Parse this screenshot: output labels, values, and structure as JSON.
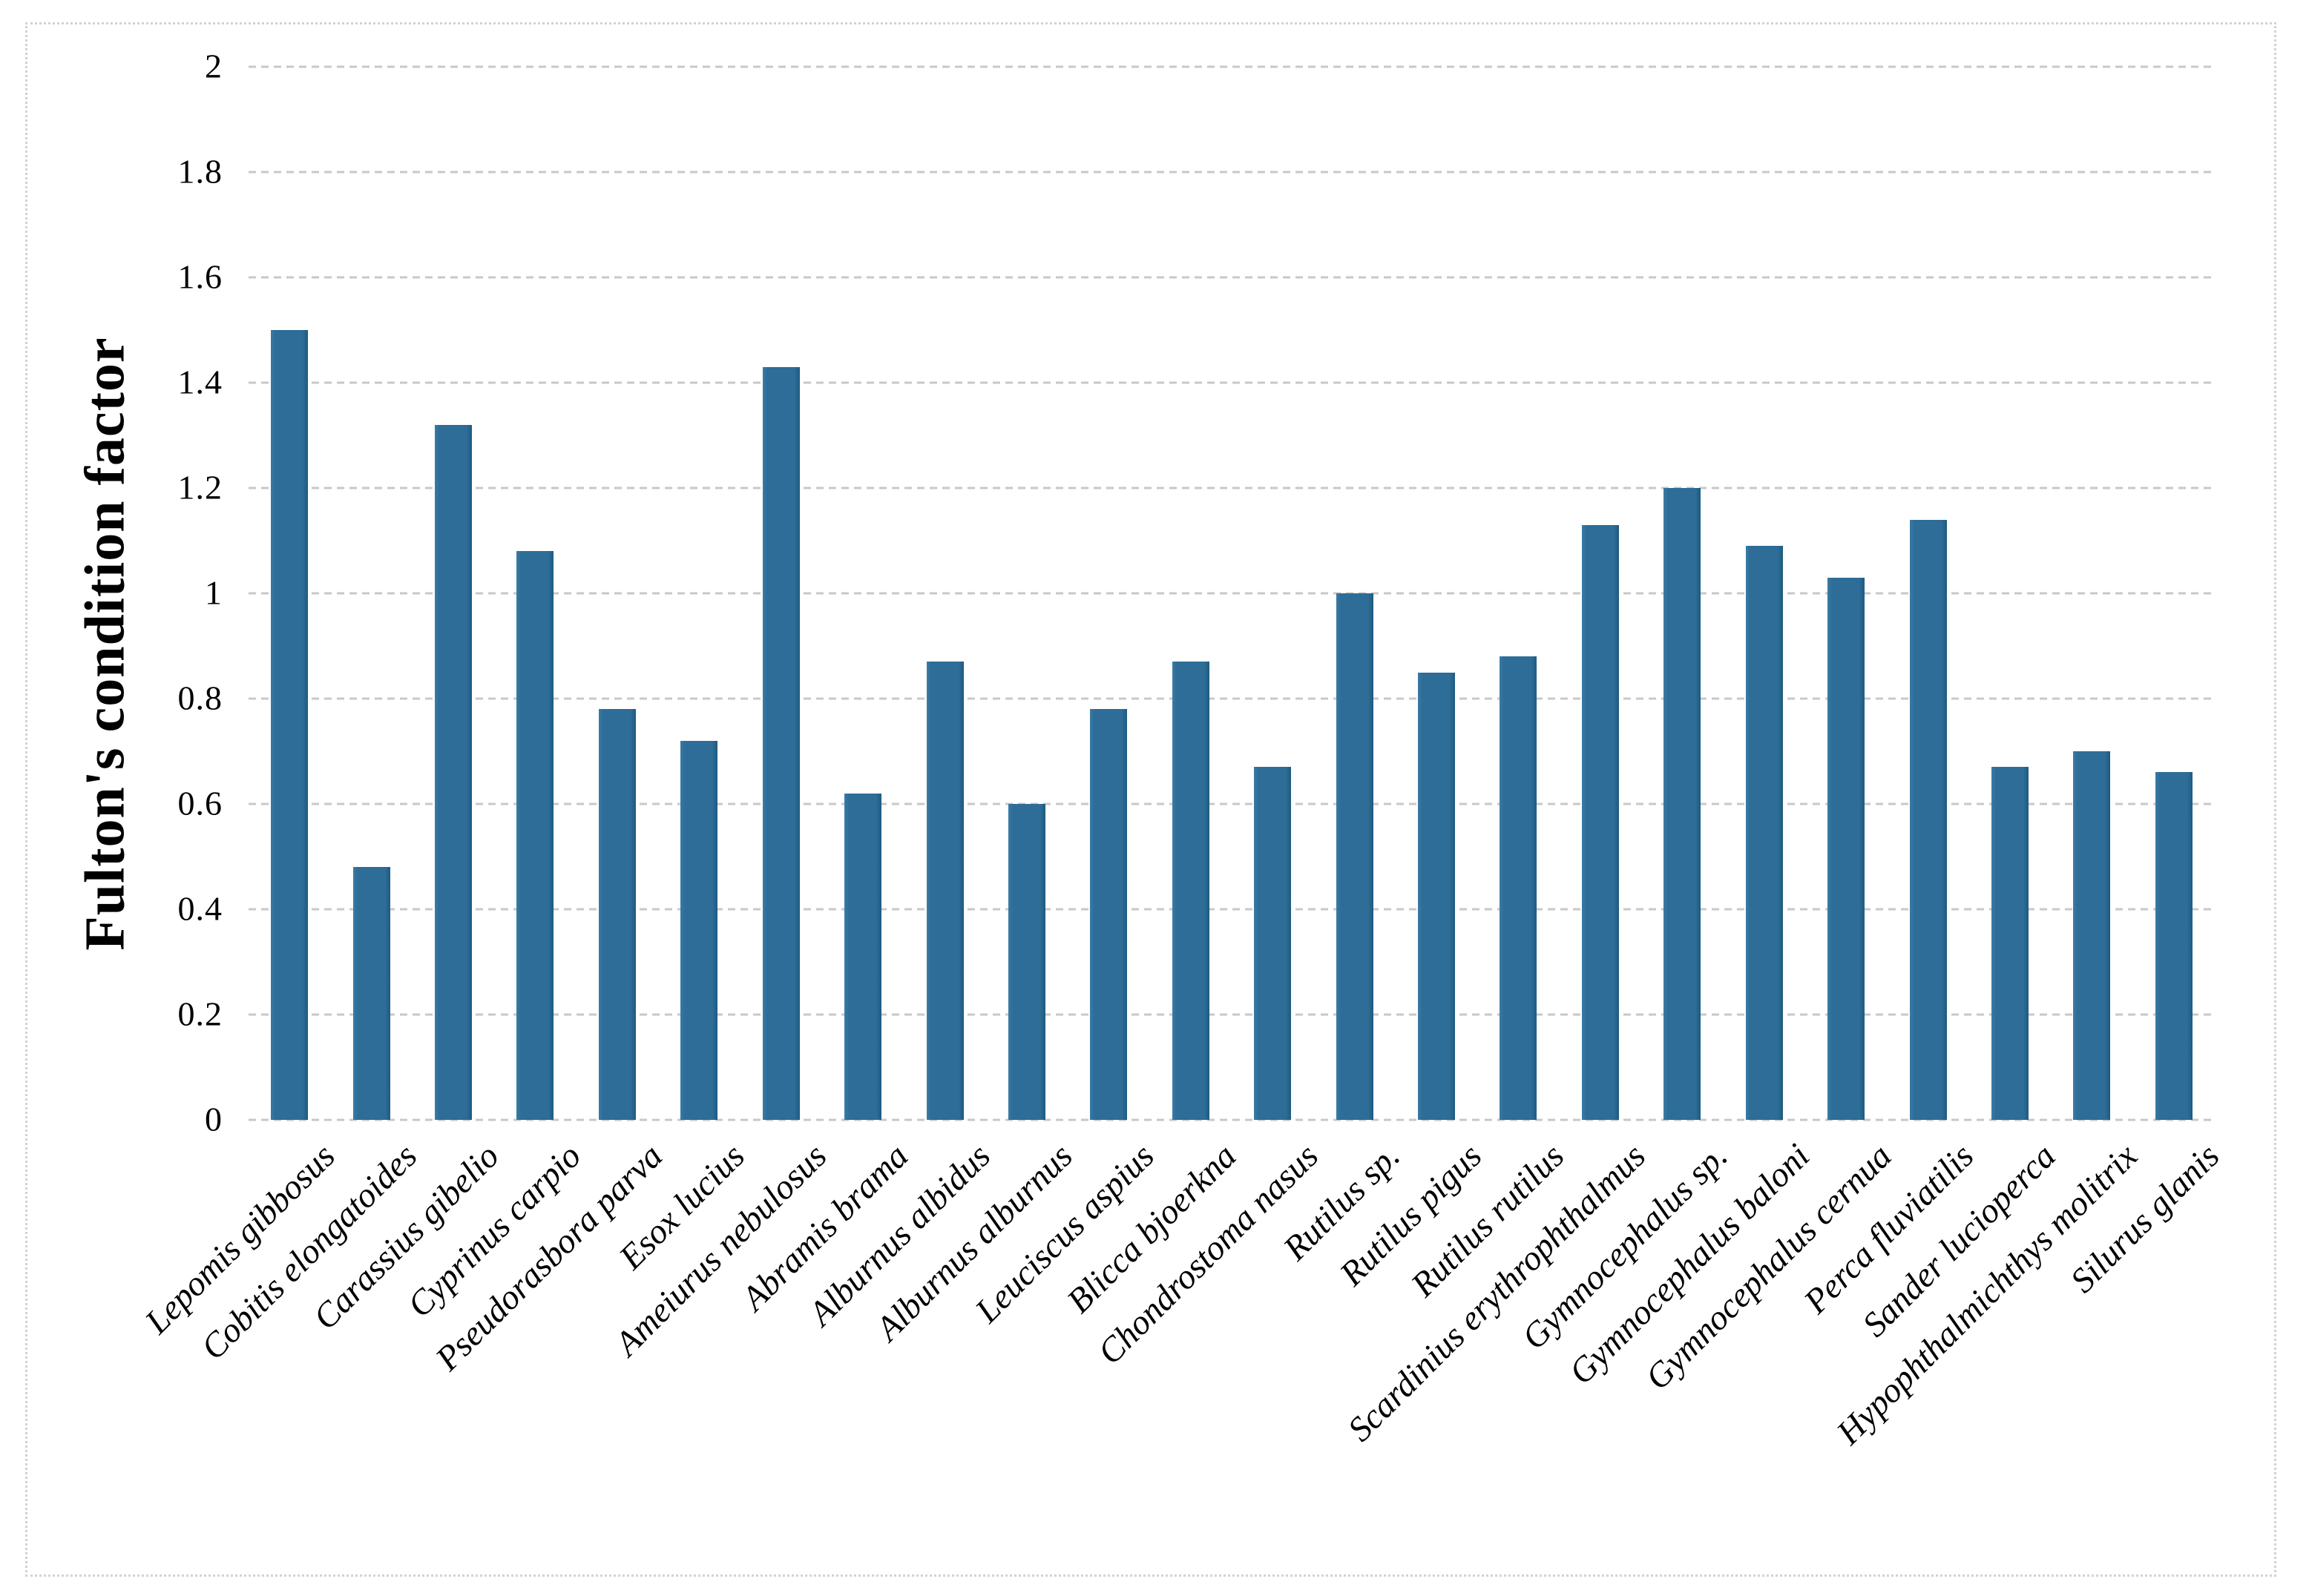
{
  "chart_data": {
    "type": "bar",
    "title": "",
    "xlabel": "",
    "ylabel": "Fulton's condition factor",
    "ylim": [
      0,
      2
    ],
    "yticks": [
      "0",
      "0.2",
      "0.4",
      "0.6",
      "0.8",
      "1",
      "1.2",
      "1.4",
      "1.6",
      "1.8",
      "2"
    ],
    "grid": "horizontal-dashed",
    "legend_position": "none",
    "bar_color": "#2d6d97",
    "gridline_color": "#c8c8c8",
    "figure_border_color": "#d2d2d2",
    "categories": [
      "Lepomis gibbosus",
      "Cobitis elongatoides",
      "Carassius gibelio",
      "Cyprinus carpio",
      "Pseudorasbora parva",
      "Esox lucius",
      "Ameiurus nebulosus",
      "Abramis brama",
      "Alburnus albidus",
      "Alburnus alburnus",
      "Leuciscus aspius",
      "Blicca bjoerkna",
      "Chondrostoma nasus",
      "Rutilus sp.",
      "Rutilus pigus",
      "Rutilus rutilus",
      "Scardinius erythrophthalmus",
      "Gymnocephalus sp.",
      "Gymnocephalus baloni",
      "Gymnocephalus cernua",
      "Perca fluviatilis",
      "Sander lucioperca",
      "Hypophthalmichthys molitrix",
      "Silurus glanis"
    ],
    "values": [
      1.5,
      0.48,
      1.32,
      1.08,
      0.78,
      0.72,
      1.43,
      0.62,
      0.87,
      0.6,
      0.78,
      0.87,
      0.67,
      1.0,
      0.85,
      0.88,
      1.13,
      1.2,
      1.09,
      1.03,
      1.14,
      0.67,
      0.7,
      0.66
    ]
  }
}
